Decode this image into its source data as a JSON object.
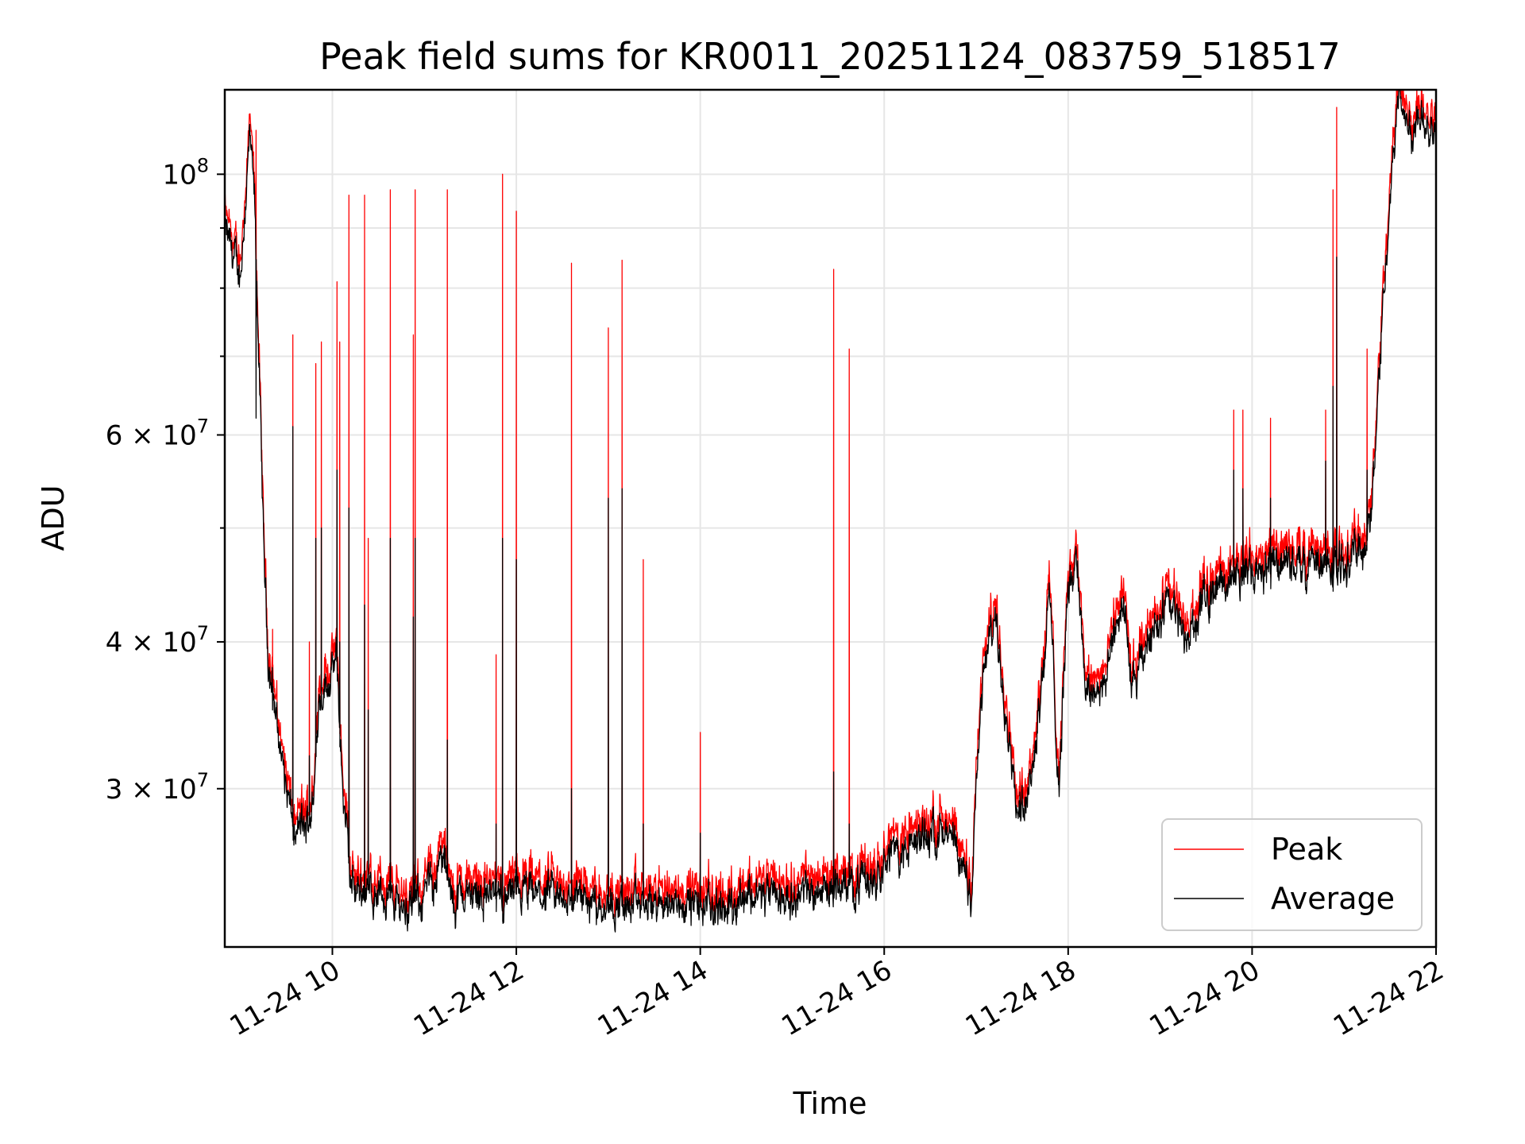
{
  "chart_data": {
    "type": "line",
    "title": "Peak field sums for KR0011_20251124_083759_518517",
    "xlabel": "Time",
    "ylabel": "ADU",
    "yscale": "log",
    "xlim": [
      8.83,
      22.0
    ],
    "ylim": [
      22000000,
      118000000
    ],
    "grid": true,
    "legend_position": "lower-right",
    "x_ticks": [
      {
        "value": 10,
        "label": "11-24 10"
      },
      {
        "value": 12,
        "label": "11-24 12"
      },
      {
        "value": 14,
        "label": "11-24 14"
      },
      {
        "value": 16,
        "label": "11-24 16"
      },
      {
        "value": 18,
        "label": "11-24 18"
      },
      {
        "value": 20,
        "label": "11-24 20"
      },
      {
        "value": 22,
        "label": "11-24 22"
      }
    ],
    "y_major_ticks": [
      {
        "value": 30000000,
        "mant": "3",
        "exp": "7"
      },
      {
        "value": 40000000,
        "mant": "4",
        "exp": "7"
      },
      {
        "value": 60000000,
        "mant": "6",
        "exp": "7"
      },
      {
        "value": 100000000,
        "mant": "",
        "exp": "8"
      }
    ],
    "y_minor_ticks": [
      50000000,
      70000000,
      80000000,
      90000000
    ],
    "baseline_x": [
      8.83,
      8.9,
      9.0,
      9.1,
      9.15,
      9.2,
      9.25,
      9.3,
      9.4,
      9.5,
      9.6,
      9.65,
      9.7,
      9.8,
      9.85,
      9.95,
      10.05,
      10.1,
      10.2,
      10.4,
      10.6,
      10.8,
      11.0,
      11.2,
      11.3,
      11.4,
      11.6,
      11.8,
      12.0,
      12.3,
      12.6,
      13.0,
      13.2,
      13.5,
      13.8,
      14.0,
      14.3,
      14.5,
      14.8,
      15.0,
      15.3,
      15.6,
      15.9,
      16.0,
      16.2,
      16.4,
      16.5,
      16.6,
      16.8,
      16.95,
      17.05,
      17.1,
      17.2,
      17.35,
      17.45,
      17.6,
      17.7,
      17.8,
      17.9,
      18.0,
      18.1,
      18.2,
      18.4,
      18.6,
      18.7,
      18.9,
      19.1,
      19.3,
      19.5,
      19.7,
      19.9,
      20.1,
      20.3,
      20.5,
      20.7,
      20.9,
      21.0,
      21.2,
      21.3,
      21.4,
      21.45,
      21.55,
      21.6,
      21.65,
      21.75,
      21.85,
      21.9,
      22.0
    ],
    "baseline_y": [
      90000000,
      86000000,
      82000000,
      107000000,
      96000000,
      70000000,
      49000000,
      39000000,
      34000000,
      30000000,
      27000000,
      28000000,
      27500000,
      29500000,
      36000000,
      37000000,
      38500000,
      31000000,
      24800000,
      24600000,
      24300000,
      23800000,
      24300000,
      26200000,
      24000000,
      24300000,
      24500000,
      24200000,
      24400000,
      24300000,
      24200000,
      24000000,
      23800000,
      23900000,
      24000000,
      23800000,
      23800000,
      24500000,
      24200000,
      24400000,
      24700000,
      24800000,
      25200000,
      26500000,
      26400000,
      27200000,
      27600000,
      27800000,
      26200000,
      24500000,
      36000000,
      38500000,
      42000000,
      34000000,
      28500000,
      31000000,
      36000000,
      44000000,
      30000000,
      45000000,
      47000000,
      36000000,
      37000000,
      44000000,
      36000000,
      41000000,
      43000000,
      40000000,
      44000000,
      45000000,
      46000000,
      46500000,
      47000000,
      46500000,
      47000000,
      46000000,
      47000000,
      48000000,
      51000000,
      72000000,
      84000000,
      108000000,
      118000000,
      113000000,
      108000000,
      114000000,
      111000000,
      110000000
    ],
    "spike_x": [
      9.17,
      9.35,
      9.57,
      9.75,
      9.82,
      9.88,
      10.05,
      10.08,
      10.18,
      10.35,
      10.39,
      10.63,
      10.88,
      10.9,
      11.25,
      11.78,
      11.85,
      12.0,
      12.6,
      13.0,
      13.15,
      13.38,
      14.0,
      15.45,
      15.62,
      19.8,
      19.9,
      20.2,
      20.8,
      20.88,
      20.92,
      21.25
    ],
    "spike_peak": [
      109000000,
      41000000,
      73000000,
      40000000,
      69000000,
      72000000,
      81000000,
      72000000,
      96000000,
      96000000,
      49000000,
      97000000,
      73000000,
      97000000,
      97000000,
      39000000,
      100000000,
      93000000,
      84000000,
      74000000,
      84500000,
      47000000,
      33500000,
      83000000,
      71000000,
      63000000,
      63000000,
      62000000,
      63000000,
      97000000,
      114000000,
      71000000
    ],
    "spike_average": [
      62000000,
      35000000,
      61000000,
      32000000,
      49000000,
      50000000,
      56000000,
      40000000,
      52000000,
      43000000,
      35000000,
      49000000,
      42000000,
      49000000,
      33000000,
      28000000,
      49000000,
      47000000,
      30000000,
      53000000,
      54000000,
      28000000,
      27500000,
      31000000,
      28000000,
      56000000,
      54000000,
      53000000,
      57000000,
      66000000,
      85000000,
      56000000
    ],
    "series": [
      {
        "name": "Peak",
        "color": "#ff0000"
      },
      {
        "name": "Average",
        "color": "#000000"
      }
    ]
  }
}
